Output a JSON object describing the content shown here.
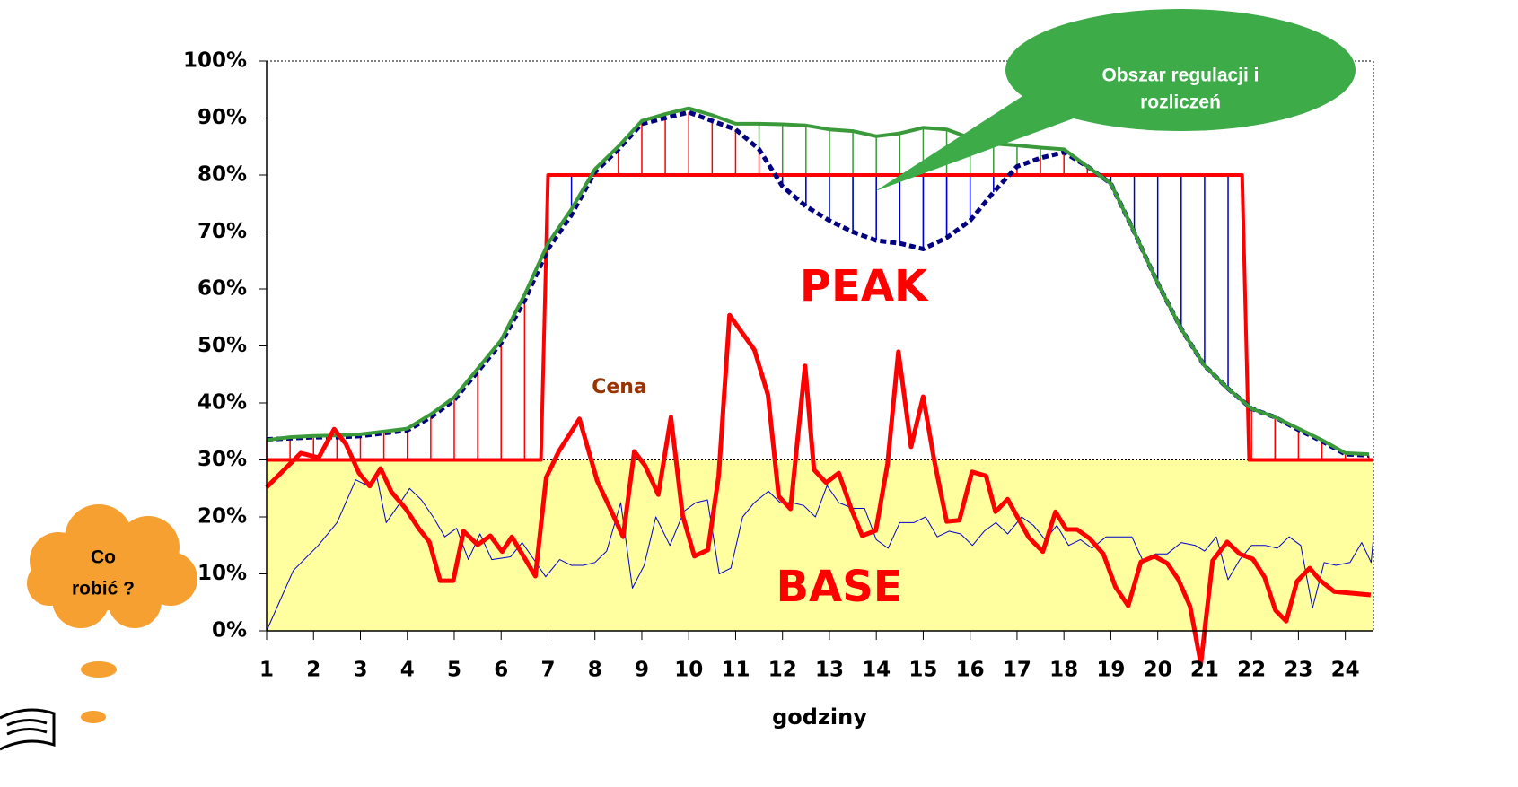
{
  "chart_data": {
    "type": "line",
    "xlabel": "godziny",
    "xlim": [
      1,
      24.6
    ],
    "xticks": [
      1,
      2,
      3,
      4,
      5,
      6,
      7,
      8,
      9,
      10,
      11,
      12,
      13,
      14,
      15,
      16,
      17,
      18,
      19,
      20,
      21,
      22,
      23,
      24
    ],
    "ylim": [
      0,
      100
    ],
    "yticks": [
      {
        "value": 0,
        "label": "0%"
      },
      {
        "value": 10,
        "label": "10%"
      },
      {
        "value": 20,
        "label": "20%"
      },
      {
        "value": 30,
        "label": "30%"
      },
      {
        "value": 40,
        "label": "40%"
      },
      {
        "value": 50,
        "label": "50%"
      },
      {
        "value": 60,
        "label": "60%"
      },
      {
        "value": 70,
        "label": "70%"
      },
      {
        "value": 80,
        "label": "80%"
      },
      {
        "value": 90,
        "label": "90%"
      },
      {
        "value": 100,
        "label": "100%"
      }
    ],
    "annotations": [
      "PEAK",
      "BASE",
      "Cena"
    ],
    "callout": [
      "Obszar regulacji i",
      "rozliczeń"
    ],
    "thought": [
      "Co",
      "robić ?"
    ],
    "band_color": "#ffffa0",
    "x": [
      1,
      1.5,
      2,
      2.5,
      3,
      3.5,
      4,
      4.5,
      5,
      5.5,
      6,
      6.5,
      7,
      7.5,
      8,
      8.5,
      9,
      9.5,
      10,
      10.5,
      11,
      11.5,
      12,
      12.5,
      13,
      13.5,
      14,
      14.5,
      15,
      15.5,
      16,
      16.5,
      17,
      17.5,
      18,
      18.5,
      19,
      19.5,
      20,
      20.5,
      21,
      21.5,
      22,
      22.5,
      23,
      23.5,
      24,
      24.5
    ],
    "series": [
      {
        "color": "#3a9a3a",
        "line_width": 4,
        "dash": false,
        "values": [
          33.5,
          34,
          34.2,
          34.3,
          34.5,
          35,
          35.5,
          38,
          41,
          46,
          51,
          59,
          68,
          74,
          81,
          85,
          89.5,
          90.7,
          91.7,
          90.5,
          89,
          89,
          88.9,
          88.7,
          88,
          87.7,
          86.8,
          87.3,
          88.3,
          88,
          86.5,
          85.5,
          85.2,
          84.8,
          84.5,
          81.5,
          78.5,
          70,
          61,
          53,
          46.5,
          42.5,
          39,
          37.5,
          35.5,
          33.5,
          31.2,
          31
        ]
      },
      {
        "color": "#000080",
        "line_width": 5,
        "dash": true,
        "values": [
          33.6,
          33.8,
          34,
          34,
          34.2,
          34.7,
          35.2,
          37.5,
          40.5,
          45.5,
          50.5,
          58,
          67,
          73,
          80.5,
          84.5,
          89,
          90,
          91,
          89.5,
          88,
          84.5,
          78,
          74.5,
          72,
          70,
          68.5,
          68,
          67,
          69,
          72,
          77,
          81.5,
          83,
          84,
          81.5,
          78.5,
          70,
          61,
          53,
          46.5,
          42.5,
          39,
          37.5,
          35.3,
          33.3,
          31,
          30.8
        ]
      },
      {
        "color": "#ff0000",
        "line_width": 4,
        "dash": false,
        "x": [
          1,
          6.85,
          7,
          21.8,
          21.95,
          24.6
        ],
        "values": [
          30,
          30,
          80,
          80,
          30,
          30
        ]
      },
      {
        "color": "#0000cc",
        "line_width": 1,
        "dash": false,
        "x": [
          1,
          1.57,
          2.1,
          2.5,
          2.9,
          3.15,
          3.35,
          3.55,
          3.85,
          4.05,
          4.3,
          4.55,
          4.8,
          5.05,
          5.3,
          5.55,
          5.8,
          6.2,
          6.45,
          6.7,
          6.95,
          7.25,
          7.5,
          7.75,
          8,
          8.25,
          8.55,
          8.8,
          9.05,
          9.3,
          9.6,
          9.9,
          10.15,
          10.4,
          10.65,
          10.9,
          11.15,
          11.4,
          11.7,
          11.95,
          12.2,
          12.45,
          12.7,
          12.95,
          13.2,
          13.5,
          13.75,
          14,
          14.25,
          14.5,
          14.8,
          15.05,
          15.3,
          15.55,
          15.8,
          16.05,
          16.3,
          16.55,
          16.8,
          17.1,
          17.35,
          17.6,
          17.85,
          18.1,
          18.35,
          18.6,
          18.9,
          19.15,
          19.45,
          19.7,
          19.95,
          20.2,
          20.5,
          20.8,
          21,
          21.25,
          21.5,
          21.75,
          22,
          22.3,
          22.55,
          22.8,
          23.05,
          23.3,
          23.55,
          23.8,
          24.1,
          24.35,
          24.55,
          24.6
        ],
        "values": [
          0,
          10.6,
          15,
          19,
          26.5,
          25.5,
          27,
          19,
          22.5,
          25,
          23,
          20,
          16.5,
          18,
          12.5,
          17,
          12.5,
          13,
          15.5,
          12.5,
          9.5,
          12.5,
          11.5,
          11.5,
          12,
          14,
          22.5,
          7.5,
          11.5,
          20,
          15,
          21,
          22.5,
          23,
          10,
          11,
          20,
          22.5,
          24.5,
          22.5,
          22.5,
          22,
          20,
          25.5,
          22.5,
          21.5,
          21.5,
          16,
          14.5,
          19,
          19,
          20,
          16.5,
          17.5,
          17,
          15,
          17.5,
          19,
          17,
          20,
          18.5,
          16,
          18.5,
          15,
          16,
          14.5,
          16.5,
          16.5,
          16.5,
          12,
          13.5,
          13.5,
          15.5,
          15,
          14,
          16.5,
          9,
          12.5,
          15,
          15,
          14.5,
          16.5,
          15,
          4,
          12,
          11.5,
          12,
          15.5,
          12,
          16.5
        ]
      },
      {
        "color": "#ff0000",
        "line_width": 5,
        "dash": false,
        "x": [
          1,
          1.73,
          2.11,
          2.44,
          2.69,
          2.97,
          3.2,
          3.43,
          3.66,
          3.97,
          4.24,
          4.47,
          4.7,
          4.98,
          5.2,
          5.5,
          5.77,
          6.02,
          6.23,
          6.73,
          6.96,
          7.23,
          7.67,
          8.05,
          8.39,
          8.6,
          8.84,
          9.07,
          9.35,
          9.62,
          9.87,
          10.12,
          10.41,
          10.64,
          10.87,
          11.4,
          11.69,
          11.92,
          12.17,
          12.48,
          12.67,
          12.93,
          13.2,
          13.47,
          13.7,
          13.99,
          14.24,
          14.47,
          14.74,
          15,
          15.23,
          15.5,
          15.77,
          16.04,
          16.34,
          16.54,
          16.8,
          17.25,
          17.55,
          17.82,
          18.05,
          18.28,
          18.55,
          18.84,
          19.1,
          19.37,
          19.64,
          19.93,
          20.21,
          20.44,
          20.69,
          20.92,
          21.17,
          21.48,
          21.75,
          22.03,
          22.28,
          22.51,
          22.74,
          22.97,
          23.24,
          23.47,
          23.76,
          24.54
        ],
        "values": [
          25.2,
          31.2,
          30.4,
          35.4,
          32.8,
          27.7,
          25.4,
          28.5,
          24.4,
          21.4,
          18,
          15.6,
          8.8,
          8.8,
          17.5,
          15.1,
          16.7,
          13.9,
          16.5,
          9.6,
          26.9,
          31.5,
          37.2,
          26.3,
          20.3,
          16.5,
          31.5,
          29,
          23.9,
          37.5,
          20.3,
          13.1,
          14.2,
          27.2,
          55.4,
          49.3,
          41.4,
          23.6,
          21.4,
          46.5,
          28.3,
          26,
          27.7,
          21.3,
          16.7,
          17.6,
          29.3,
          49,
          32.3,
          41.1,
          30.1,
          19.2,
          19.4,
          27.9,
          27.2,
          20.9,
          23.1,
          16.4,
          13.9,
          20.9,
          17.8,
          17.8,
          16.2,
          13.5,
          7.7,
          4.4,
          12.1,
          13.1,
          11.8,
          9,
          4.3,
          -5.8,
          12.3,
          15.6,
          13.5,
          12.6,
          9.4,
          3.6,
          1.7,
          8.7,
          11,
          8.8,
          6.9,
          6.3
        ]
      }
    ]
  }
}
